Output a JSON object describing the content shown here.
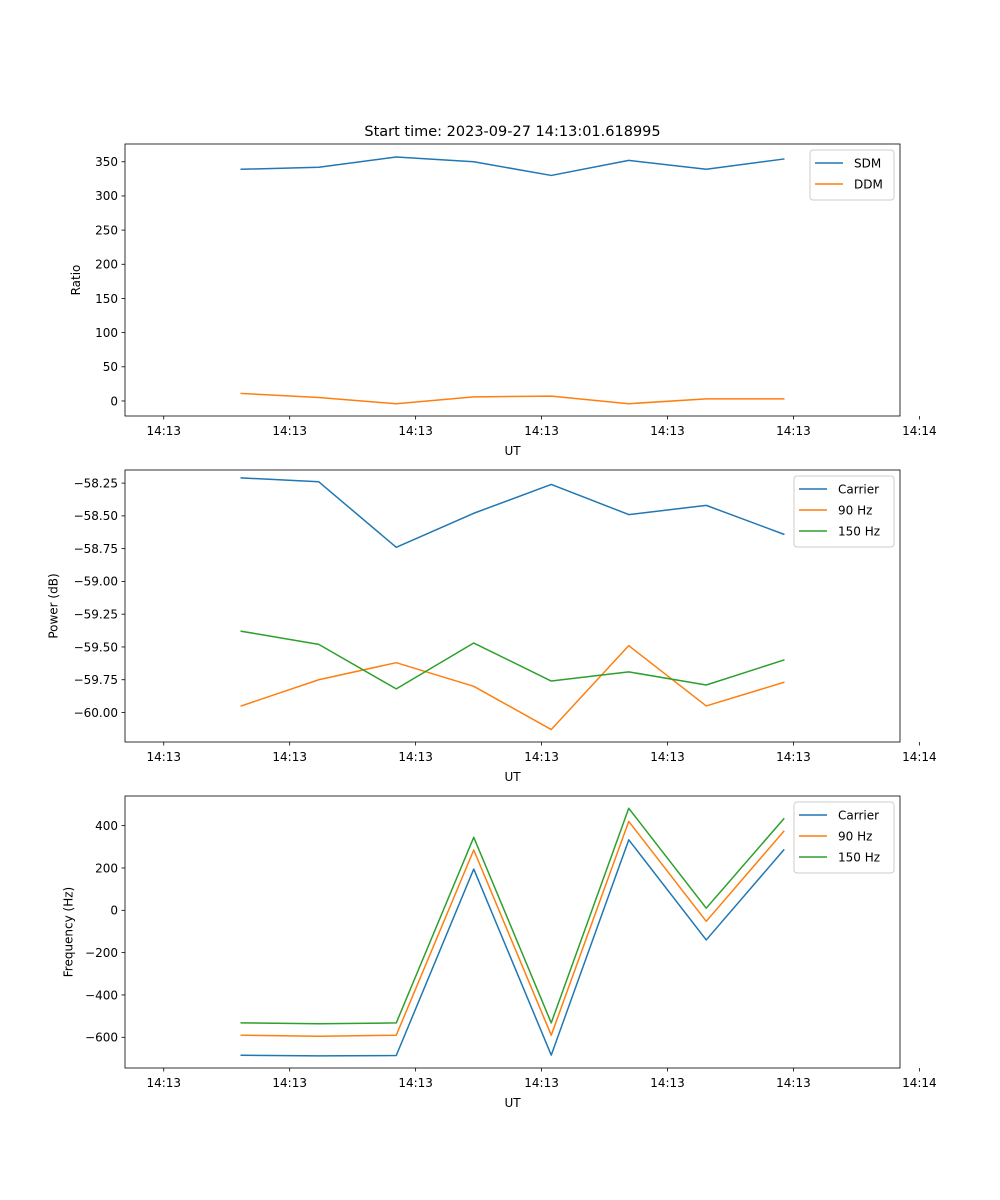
{
  "figure": {
    "title": "Start time: 2023-09-27 14:13:01.618995"
  },
  "colors": {
    "c0": "#1f77b4",
    "c1": "#ff7f0e",
    "c2": "#2ca02c",
    "axis": "#000000",
    "background": "#ffffff"
  },
  "chart_data": [
    {
      "type": "line",
      "title": "Start time: 2023-09-27 14:13:01.618995",
      "xlabel": "UT",
      "ylabel": "Ratio",
      "xlim": [
        -0.5,
        9.5
      ],
      "ylim": [
        -22,
        376
      ],
      "x": [
        1,
        2,
        3,
        4,
        5,
        6,
        7,
        8
      ],
      "x_ticks": [
        0,
        1.625,
        3.25,
        4.875,
        6.5,
        8.125,
        9.75
      ],
      "x_tick_labels": [
        "14:13",
        "14:13",
        "14:13",
        "14:13",
        "14:13",
        "14:13",
        "14:14"
      ],
      "y_ticks": [
        0,
        50,
        100,
        150,
        200,
        250,
        300,
        350
      ],
      "y_tick_labels": [
        "0",
        "50",
        "100",
        "150",
        "200",
        "250",
        "300",
        "350"
      ],
      "legend_position": "top-right",
      "series": [
        {
          "name": "SDM",
          "color": "#1f77b4",
          "values": [
            339,
            342,
            357,
            350,
            330,
            352,
            339,
            354
          ]
        },
        {
          "name": "DDM",
          "color": "#ff7f0e",
          "values": [
            11,
            5,
            -4,
            6,
            7,
            -4,
            3,
            3
          ]
        }
      ]
    },
    {
      "type": "line",
      "title": "",
      "xlabel": "UT",
      "ylabel": "Power (dB)",
      "xlim": [
        -0.5,
        9.5
      ],
      "ylim": [
        -60.225,
        -58.15
      ],
      "x": [
        1,
        2,
        3,
        4,
        5,
        6,
        7,
        8
      ],
      "x_ticks": [
        0,
        1.625,
        3.25,
        4.875,
        6.5,
        8.125,
        9.75
      ],
      "x_tick_labels": [
        "14:13",
        "14:13",
        "14:13",
        "14:13",
        "14:13",
        "14:13",
        "14:14"
      ],
      "y_ticks": [
        -60.0,
        -59.75,
        -59.5,
        -59.25,
        -59.0,
        -58.75,
        -58.5,
        -58.25
      ],
      "y_tick_labels": [
        "−60.00",
        "−59.75",
        "−59.50",
        "−59.25",
        "−59.00",
        "−58.75",
        "−58.50",
        "−58.25"
      ],
      "legend_position": "top-right",
      "series": [
        {
          "name": "Carrier",
          "color": "#1f77b4",
          "values": [
            -58.21,
            -58.24,
            -58.74,
            -58.48,
            -58.26,
            -58.49,
            -58.42,
            -58.64
          ]
        },
        {
          "name": "90 Hz",
          "color": "#ff7f0e",
          "values": [
            -59.95,
            -59.75,
            -59.62,
            -59.8,
            -60.13,
            -59.49,
            -59.95,
            -59.77
          ]
        },
        {
          "name": "150 Hz",
          "color": "#2ca02c",
          "values": [
            -59.38,
            -59.48,
            -59.82,
            -59.47,
            -59.76,
            -59.69,
            -59.79,
            -59.6
          ]
        }
      ]
    },
    {
      "type": "line",
      "title": "",
      "xlabel": "UT",
      "ylabel": "Frequency (Hz)",
      "xlim": [
        -0.5,
        9.5
      ],
      "ylim": [
        -745,
        540
      ],
      "x": [
        1,
        2,
        3,
        4,
        5,
        6,
        7,
        8
      ],
      "x_ticks": [
        0,
        1.625,
        3.25,
        4.875,
        6.5,
        8.125,
        9.75
      ],
      "x_tick_labels": [
        "14:13",
        "14:13",
        "14:13",
        "14:13",
        "14:13",
        "14:13",
        "14:14"
      ],
      "y_ticks": [
        -600,
        -400,
        -200,
        0,
        200,
        400
      ],
      "y_tick_labels": [
        "−600",
        "−400",
        "−200",
        "0",
        "200",
        "400"
      ],
      "legend_position": "top-right",
      "series": [
        {
          "name": "Carrier",
          "color": "#1f77b4",
          "values": [
            -685,
            -688,
            -686,
            195,
            -684,
            333,
            -140,
            285
          ]
        },
        {
          "name": "90 Hz",
          "color": "#ff7f0e",
          "values": [
            -590,
            -595,
            -590,
            285,
            -590,
            420,
            -52,
            373
          ]
        },
        {
          "name": "150 Hz",
          "color": "#2ca02c",
          "values": [
            -532,
            -536,
            -532,
            345,
            -532,
            482,
            10,
            432
          ]
        }
      ]
    }
  ]
}
